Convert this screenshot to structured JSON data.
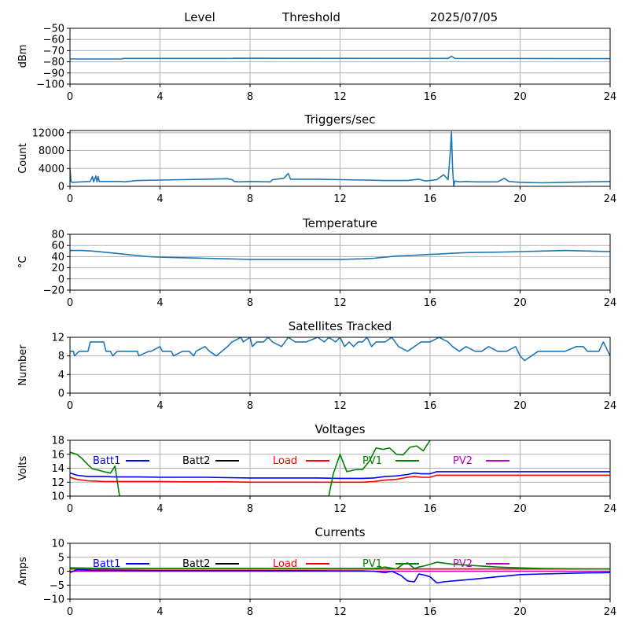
{
  "header": {
    "items": [
      "Level",
      "Threshold",
      "2025/07/05"
    ]
  },
  "chart_data": [
    {
      "id": "level",
      "type": "line",
      "title": "",
      "ylabel": "dBm",
      "ylim": [
        -100,
        -50
      ],
      "yticks": [
        -50,
        -60,
        -70,
        -80,
        -90,
        -100
      ],
      "xlim": [
        0,
        24
      ],
      "xticks": [
        0,
        4,
        8,
        12,
        16,
        20,
        24
      ],
      "grid": true,
      "series": [
        {
          "color": "#1f77b4",
          "x": [
            0,
            2.3,
            2.4,
            7.2,
            7.3,
            16.8,
            16.95,
            17.1,
            24
          ],
          "y": [
            -77.5,
            -77.5,
            -77,
            -77,
            -76.8,
            -77,
            -75,
            -77,
            -77.2
          ]
        }
      ]
    },
    {
      "id": "triggers",
      "type": "line",
      "title": "Triggers/sec",
      "ylabel": "Count",
      "ylim": [
        0,
        12500
      ],
      "yticks": [
        0,
        4000,
        8000,
        12000
      ],
      "xlim": [
        0,
        24
      ],
      "xticks": [
        0,
        4,
        8,
        12,
        16,
        20,
        24
      ],
      "grid": true,
      "series": [
        {
          "color": "#1f77b4",
          "x": [
            0,
            0.05,
            0.1,
            0.5,
            0.9,
            1.0,
            1.05,
            1.15,
            1.2,
            1.25,
            1.3,
            2.3,
            2.4,
            3,
            4,
            5,
            6,
            7,
            7.2,
            7.3,
            7.5,
            8,
            8.9,
            9,
            9.5,
            9.7,
            9.8,
            10,
            11,
            12,
            13,
            14,
            15,
            15.5,
            15.8,
            16,
            16.3,
            16.6,
            16.8,
            16.9,
            16.95,
            17.0,
            17.05,
            17.1,
            17.3,
            17.6,
            18,
            19,
            19.3,
            19.5,
            20,
            21,
            22,
            23,
            24
          ],
          "y": [
            4000,
            1000,
            900,
            1000,
            1100,
            2200,
            1000,
            2300,
            1000,
            2200,
            1100,
            1100,
            1000,
            1300,
            1400,
            1500,
            1600,
            1700,
            1500,
            1100,
            1000,
            1100,
            1000,
            1500,
            1800,
            2900,
            1600,
            1600,
            1600,
            1500,
            1400,
            1300,
            1300,
            1600,
            1200,
            1300,
            1500,
            2600,
            1500,
            8000,
            12200,
            4000,
            0,
            1200,
            1000,
            1100,
            1000,
            1000,
            1800,
            1100,
            900,
            800,
            900,
            1000,
            1100
          ]
        }
      ]
    },
    {
      "id": "temperature",
      "type": "line",
      "title": "Temperature",
      "ylabel": "°C",
      "ylim": [
        -20,
        80
      ],
      "yticks": [
        -20,
        0,
        20,
        40,
        60,
        80
      ],
      "xlim": [
        0,
        24
      ],
      "xticks": [
        0,
        4,
        8,
        12,
        16,
        20,
        24
      ],
      "grid": true,
      "series": [
        {
          "color": "#1f77b4",
          "x": [
            0,
            0.5,
            1,
            1.5,
            2,
            2.5,
            3,
            3.5,
            4,
            5,
            6,
            7,
            8,
            9,
            10,
            11,
            12,
            13,
            13.5,
            14,
            14.5,
            15,
            15.5,
            16,
            16.5,
            17,
            17.5,
            18,
            19,
            20,
            21,
            22,
            23,
            24
          ],
          "y": [
            51,
            51,
            50,
            48,
            46,
            44,
            42,
            40,
            39,
            38,
            37,
            36,
            35,
            35,
            35,
            35,
            35,
            36,
            37,
            39,
            41,
            42,
            43,
            44,
            45,
            46,
            47,
            47.5,
            48,
            49,
            50,
            51,
            50,
            49
          ]
        }
      ]
    },
    {
      "id": "satellites",
      "type": "line",
      "title": "Satellites Tracked",
      "ylabel": "Number",
      "ylim": [
        0,
        12
      ],
      "yticks": [
        0,
        4,
        8,
        12
      ],
      "xlim": [
        0,
        24
      ],
      "xticks": [
        0,
        4,
        8,
        12,
        16,
        20,
        24
      ],
      "grid": true,
      "series": [
        {
          "color": "#1f77b4",
          "x": [
            0,
            0.15,
            0.2,
            0.4,
            0.8,
            0.9,
            1.5,
            1.6,
            1.8,
            1.9,
            2.1,
            2.2,
            3,
            3.05,
            3.5,
            3.6,
            4,
            4.1,
            4.5,
            4.6,
            5,
            5.3,
            5.5,
            5.6,
            6,
            6.2,
            6.5,
            7,
            7.2,
            7.6,
            7.7,
            8,
            8.1,
            8.3,
            8.6,
            8.8,
            9,
            9.4,
            9.7,
            10,
            10.5,
            11,
            11.3,
            11.5,
            11.8,
            12,
            12.2,
            12.4,
            12.6,
            12.8,
            13,
            13.2,
            13.4,
            13.6,
            14,
            14.3,
            14.6,
            15,
            15.3,
            15.6,
            16,
            16.4,
            16.8,
            17,
            17.3,
            17.6,
            18,
            18.3,
            18.6,
            19,
            19.4,
            19.8,
            20,
            20.2,
            20.5,
            20.8,
            21,
            21.5,
            22,
            22.5,
            22.8,
            23,
            23.5,
            23.7,
            24
          ],
          "y": [
            9,
            9,
            8,
            9,
            9,
            11,
            11,
            9,
            9,
            8,
            9,
            9,
            9,
            8,
            9,
            9,
            10,
            9,
            9,
            8,
            9,
            9,
            8,
            9,
            10,
            9,
            8,
            10,
            11,
            12,
            11,
            12,
            10,
            11,
            11,
            12,
            11,
            10,
            12,
            11,
            11,
            12,
            11,
            12,
            11,
            12,
            10,
            11,
            10,
            11,
            11,
            12,
            10,
            11,
            11,
            12,
            10,
            9,
            10,
            11,
            11,
            12,
            11,
            10,
            9,
            10,
            9,
            9,
            10,
            9,
            9,
            10,
            8,
            7,
            8,
            9,
            9,
            9,
            9,
            10,
            10,
            9,
            9,
            11,
            8
          ]
        }
      ]
    },
    {
      "id": "voltages",
      "type": "line",
      "title": "Voltages",
      "ylabel": "Volts",
      "ylim": [
        10,
        18
      ],
      "yticks": [
        10,
        12,
        14,
        16,
        18
      ],
      "xlim": [
        0,
        24
      ],
      "xticks": [
        0,
        4,
        8,
        12,
        16,
        20,
        24
      ],
      "grid": true,
      "legend": [
        {
          "name": "Batt1",
          "color": "#0000ff"
        },
        {
          "name": "Batt2",
          "color": "#000000"
        },
        {
          "name": "Load",
          "color": "#ff0000"
        },
        {
          "name": "PV1",
          "color": "#008000"
        },
        {
          "name": "PV2",
          "color": "#bf00bf"
        }
      ],
      "series": [
        {
          "name": "Batt1",
          "color": "#0000ff",
          "x": [
            0,
            0.3,
            0.8,
            1.5,
            2,
            3,
            4,
            5,
            6,
            7,
            8,
            9,
            10,
            11,
            12,
            13,
            13.5,
            14,
            14.5,
            15,
            15.3,
            15.6,
            16,
            16.3,
            17,
            18,
            19,
            20,
            21,
            22,
            23,
            24
          ],
          "y": [
            13.3,
            13.0,
            12.8,
            12.8,
            12.75,
            12.75,
            12.7,
            12.7,
            12.7,
            12.65,
            12.6,
            12.6,
            12.6,
            12.6,
            12.55,
            12.55,
            12.6,
            12.8,
            12.9,
            13.1,
            13.3,
            13.2,
            13.2,
            13.5,
            13.5,
            13.5,
            13.5,
            13.5,
            13.5,
            13.5,
            13.5,
            13.5
          ]
        },
        {
          "name": "Load",
          "color": "#ff0000",
          "x": [
            0,
            0.3,
            0.8,
            1.5,
            2,
            3,
            4,
            5,
            6,
            7,
            8,
            9,
            10,
            11,
            12,
            13,
            13.5,
            14,
            14.5,
            15,
            15.3,
            15.6,
            16,
            16.3,
            17,
            18,
            19,
            20,
            21,
            22,
            23,
            24
          ],
          "y": [
            12.7,
            12.4,
            12.2,
            12.1,
            12.1,
            12.1,
            12.1,
            12.05,
            12.05,
            12.05,
            12.0,
            12.0,
            12.0,
            12.0,
            12.0,
            12.0,
            12.1,
            12.3,
            12.4,
            12.7,
            12.8,
            12.7,
            12.7,
            13.0,
            13.0,
            13.0,
            13.0,
            13.0,
            13.0,
            13.0,
            13.0,
            13.0
          ]
        },
        {
          "name": "PV1",
          "color": "#008000",
          "x": [
            0,
            0.3,
            0.5,
            0.8,
            1,
            1.3,
            1.5,
            1.8,
            2.0,
            2.2,
            11.5,
            11.7,
            12.0,
            12.3,
            12.7,
            13.0,
            13.3,
            13.6,
            13.9,
            14.2,
            14.5,
            14.8,
            15.1,
            15.4,
            15.7,
            16.0
          ],
          "y": [
            16.3,
            16.0,
            15.5,
            14.5,
            13.9,
            13.7,
            13.5,
            13.3,
            14.3,
            10.0,
            10.0,
            13.2,
            16.0,
            13.5,
            13.8,
            13.8,
            15.0,
            16.9,
            16.7,
            16.9,
            16.0,
            15.9,
            17.0,
            17.2,
            16.5,
            18.0
          ]
        }
      ]
    },
    {
      "id": "currents",
      "type": "line",
      "title": "Currents",
      "ylabel": "Amps",
      "ylim": [
        -10,
        10
      ],
      "yticks": [
        -10,
        -5,
        0,
        5,
        10
      ],
      "xlim": [
        0,
        24
      ],
      "xticks": [
        0,
        4,
        8,
        12,
        16,
        20,
        24
      ],
      "grid": true,
      "legend": [
        {
          "name": "Batt1",
          "color": "#0000ff"
        },
        {
          "name": "Batt2",
          "color": "#000000"
        },
        {
          "name": "Load",
          "color": "#ff0000"
        },
        {
          "name": "PV1",
          "color": "#008000"
        },
        {
          "name": "PV2",
          "color": "#bf00bf"
        }
      ],
      "series": [
        {
          "name": "PV2",
          "color": "#bf00bf",
          "x": [
            0,
            4,
            8,
            12,
            16,
            20,
            24
          ],
          "y": [
            0,
            0,
            0,
            0,
            0,
            0,
            0
          ]
        },
        {
          "name": "Batt2",
          "color": "#000000",
          "x": [
            0,
            4,
            8,
            12,
            16,
            20,
            24
          ],
          "y": [
            0.8,
            0.8,
            0.8,
            0.8,
            0.8,
            0.8,
            0.8
          ]
        },
        {
          "name": "Load",
          "color": "#ff0000",
          "x": [
            0,
            4,
            8,
            12,
            16,
            20,
            24
          ],
          "y": [
            0.8,
            0.8,
            0.8,
            0.8,
            0.8,
            0.8,
            0.8
          ]
        },
        {
          "name": "PV1",
          "color": "#008000",
          "x": [
            0,
            2,
            4,
            6,
            8,
            10,
            12,
            13.5,
            14,
            14.5,
            14.8,
            15.0,
            15.3,
            15.5,
            15.8,
            16.0,
            16.3,
            17,
            18,
            19,
            20,
            21,
            22,
            23,
            24
          ],
          "y": [
            1.2,
            1.0,
            1.0,
            1.0,
            1.0,
            1.0,
            1.0,
            1.0,
            1.5,
            0.8,
            2.5,
            3.0,
            1.0,
            1.5,
            2.0,
            2.5,
            3.2,
            2.5,
            2.0,
            1.5,
            1.2,
            1.0,
            0.9,
            0.8,
            0.8
          ]
        },
        {
          "name": "Batt1",
          "color": "#0000ff",
          "x": [
            0,
            0.3,
            1,
            2,
            4,
            6,
            8,
            10,
            12,
            13,
            13.5,
            14,
            14.3,
            14.7,
            15.0,
            15.3,
            15.5,
            15.8,
            16.0,
            16.3,
            16.6,
            17,
            18,
            19,
            20,
            21,
            22,
            23,
            24
          ],
          "y": [
            -0.5,
            0.5,
            0.3,
            0.3,
            0.2,
            0.2,
            0.2,
            0.2,
            0.1,
            0.1,
            0.0,
            -0.5,
            0.0,
            -1.5,
            -3.5,
            -3.8,
            -1.0,
            -1.5,
            -2.0,
            -4.2,
            -3.8,
            -3.5,
            -2.8,
            -2.0,
            -1.2,
            -1.0,
            -0.8,
            -0.6,
            -0.5
          ]
        }
      ]
    }
  ]
}
